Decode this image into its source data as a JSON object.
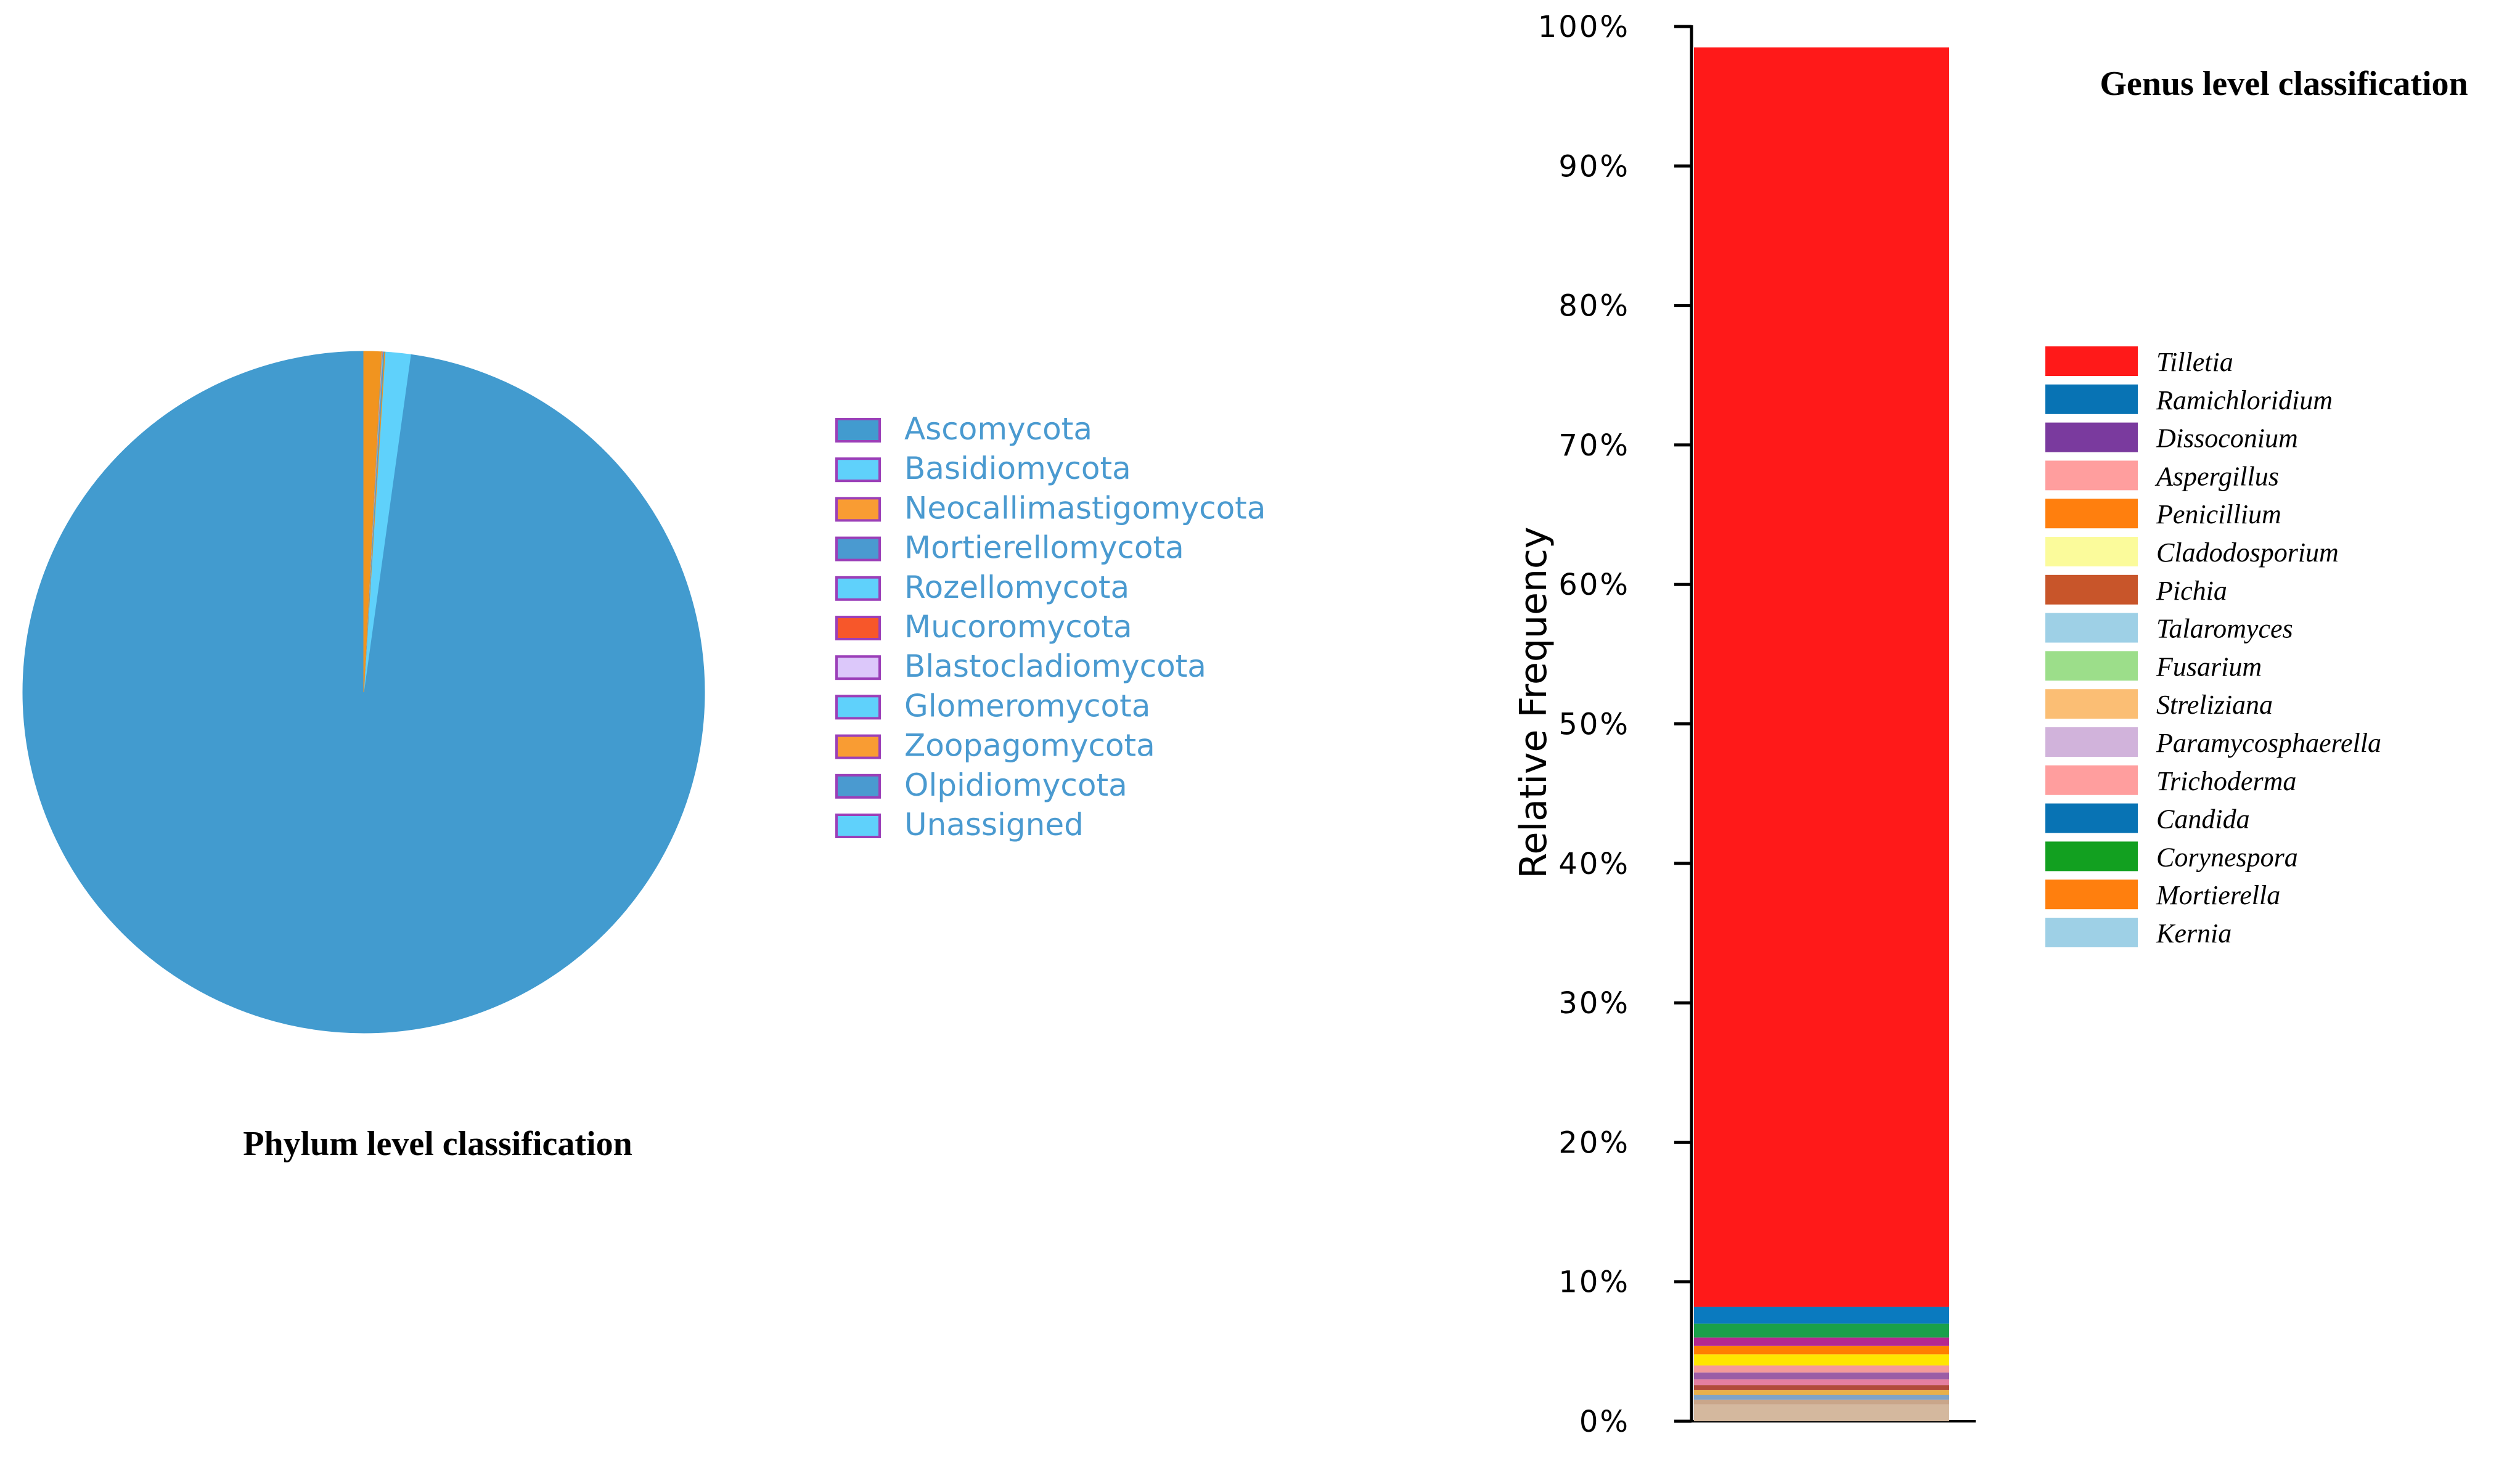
{
  "chart_data": [
    {
      "type": "pie",
      "title": "Phylum level classification",
      "legend_position": "right",
      "categories": [
        "Ascomycota",
        "Basidiomycota",
        "Neocallimastigomycota",
        "Mortierellomycota",
        "Rozellomycota",
        "Mucoromycota",
        "Blastocladiomycota",
        "Glomeromycota",
        "Zoopagomycota",
        "Olpidiomycota",
        "Unassigned"
      ],
      "values": [
        97.8,
        1.2,
        0.05,
        0.05,
        0.02,
        0.02,
        0.01,
        0.01,
        0.01,
        0.01,
        0.82
      ],
      "colors": [
        "#429bcf",
        "#5fd1fb",
        "#f99c33",
        "#4a9ad0",
        "#5fd1fb",
        "#f7572a",
        "#dcc8fa",
        "#5fd1fb",
        "#f99c33",
        "#4a9ad0",
        "#5fd1fb"
      ],
      "slice_colors": [
        "#429bcf",
        "#5fd1fb",
        "#f1941f",
        "#4a9ad0",
        "#5fd1fb",
        "#f7572a",
        "#dcc8fa",
        "#5fd1fb",
        "#f99c33",
        "#4a9ad0",
        "#f1941f"
      ],
      "legend_text_color": "#4a9ad0",
      "legend_border_color": "#9b3fb8"
    },
    {
      "type": "bar",
      "stacked": true,
      "title": "Genus level classification",
      "ylabel": "Relative Frequency",
      "ylim": [
        0,
        100
      ],
      "yticks": [
        "0%",
        "10%",
        "20%",
        "30%",
        "40%",
        "50%",
        "60%",
        "70%",
        "80%",
        "90%",
        "100%"
      ],
      "legend_position": "right",
      "stack": [
        {
          "label": "",
          "value": 1.2,
          "color": "#d4b89e"
        },
        {
          "label": "",
          "value": 0.35,
          "color": "#c9a68a"
        },
        {
          "label": "",
          "value": 0.35,
          "color": "#7fa3c7"
        },
        {
          "label": "",
          "value": 0.35,
          "color": "#e8b04a"
        },
        {
          "label": "",
          "value": 0.35,
          "color": "#b24b3a"
        },
        {
          "label": "",
          "value": 0.4,
          "color": "#e57fa0"
        },
        {
          "label": "",
          "value": 0.5,
          "color": "#9b5da6"
        },
        {
          "label": "",
          "value": 0.5,
          "color": "#f49a9a"
        },
        {
          "label": "",
          "value": 0.8,
          "color": "#ffe600"
        },
        {
          "label": "",
          "value": 0.6,
          "color": "#ff8000"
        },
        {
          "label": "",
          "value": 0.6,
          "color": "#b5288f"
        },
        {
          "label": "",
          "value": 1.0,
          "color": "#1aa04a"
        },
        {
          "label": "",
          "value": 1.2,
          "color": "#0a7abf"
        },
        {
          "label": "",
          "value": 90.3,
          "color": "#ff1919"
        }
      ],
      "legend": [
        {
          "label": "Tilletia",
          "color": "#ff1919"
        },
        {
          "label": "Ramichloridium",
          "color": "#0873b4"
        },
        {
          "label": "Dissoconium",
          "color": "#7a3a9e"
        },
        {
          "label": "Aspergillus",
          "color": "#ff9e9e"
        },
        {
          "label": "Penicillium",
          "color": "#ff7f0e"
        },
        {
          "label": "Cladodosporium",
          "color": "#fbfb9b"
        },
        {
          "label": "Pichia",
          "color": "#c8552a"
        },
        {
          "label": "Talaromyces",
          "color": "#9ed0e6"
        },
        {
          "label": "Fusarium",
          "color": "#9cde8a"
        },
        {
          "label": "Streliziana",
          "color": "#fbbe74"
        },
        {
          "label": "Paramycosphaerella",
          "color": "#d1b3db"
        },
        {
          "label": "Trichoderma",
          "color": "#ff9e9e"
        },
        {
          "label": "Candida",
          "color": "#0873b4"
        },
        {
          "label": "Corynespora",
          "color": "#12a020"
        },
        {
          "label": "Mortierella",
          "color": "#ff7f0e"
        },
        {
          "label": "Kernia",
          "color": "#9ed0e6"
        }
      ]
    }
  ]
}
